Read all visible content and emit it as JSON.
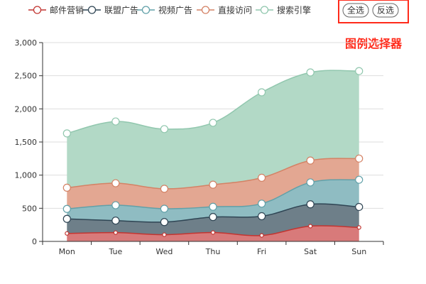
{
  "legend_selector": {
    "all_label": "全选",
    "inverse_label": "反选"
  },
  "annotation": {
    "text": "图例选择器",
    "color": "#ff2a1a"
  },
  "chart_data": {
    "type": "area",
    "stacked": true,
    "categories": [
      "Mon",
      "Tue",
      "Wed",
      "Thu",
      "Fri",
      "Sat",
      "Sun"
    ],
    "ylim": [
      0,
      3000
    ],
    "yticks": [
      0,
      500,
      1000,
      1500,
      2000,
      2500,
      3000
    ],
    "ytick_labels": [
      "0",
      "500",
      "1,000",
      "1,500",
      "2,000",
      "2,500",
      "3,000"
    ],
    "grid": true,
    "legend_position": "top",
    "series": [
      {
        "name": "邮件营销",
        "values": [
          120,
          132,
          101,
          134,
          90,
          230,
          210
        ],
        "color": "#c23531",
        "area_color": "#d87a7a"
      },
      {
        "name": "联盟广告",
        "values": [
          220,
          182,
          191,
          234,
          290,
          330,
          310
        ],
        "color": "#2f4554",
        "area_color": "#6e7f89"
      },
      {
        "name": "视频广告",
        "values": [
          150,
          232,
          201,
          154,
          190,
          330,
          410
        ],
        "color": "#61a0a8",
        "area_color": "#8fbcc2"
      },
      {
        "name": "直接访问",
        "values": [
          320,
          332,
          301,
          334,
          390,
          330,
          320
        ],
        "color": "#d48265",
        "area_color": "#e3a792"
      },
      {
        "name": "搜索引擎",
        "values": [
          820,
          932,
          901,
          934,
          1290,
          1330,
          1320
        ],
        "color": "#91c7ae",
        "area_color": "#b2d9c6"
      }
    ]
  }
}
